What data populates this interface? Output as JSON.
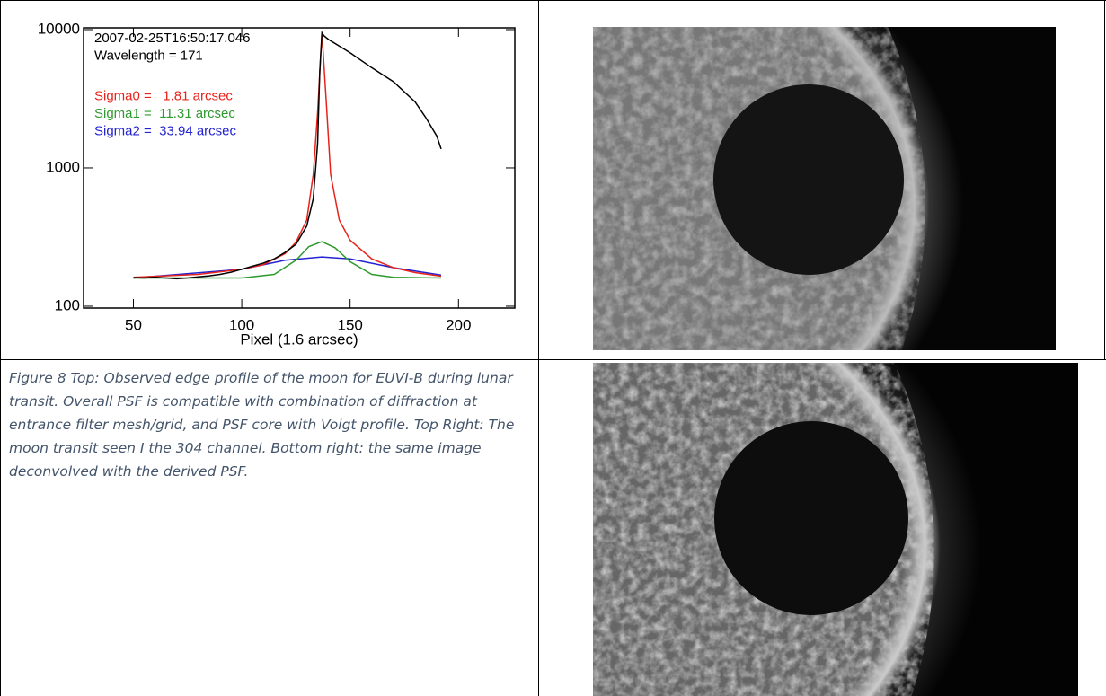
{
  "chart_data": {
    "type": "line",
    "log_y": true,
    "xlabel": "Pixel (1.6 arcsec)",
    "xlim": [
      27,
      226
    ],
    "xticks": [
      50,
      100,
      150,
      200
    ],
    "ylim": [
      97,
      10300
    ],
    "yticks": [
      100,
      1000,
      10000
    ],
    "annotations": [
      {
        "text": "2007-02-25T16:50:17.046",
        "color": "#000000"
      },
      {
        "text": "Wavelength = 171",
        "color": "#000000"
      },
      {
        "text": "Sigma0 =   1.81 arcsec",
        "color": "#e8231c"
      },
      {
        "text": "Sigma1 =  11.31 arcsec",
        "color": "#2e9a2e"
      },
      {
        "text": "Sigma2 =  33.94 arcsec",
        "color": "#2323d0"
      }
    ],
    "series": [
      {
        "color": "#000000",
        "x": [
          50,
          55,
          60,
          65,
          70,
          75,
          80,
          85,
          90,
          95,
          100,
          105,
          110,
          115,
          120,
          125,
          130,
          133,
          135,
          136,
          137,
          138,
          140,
          150,
          160,
          170,
          180,
          185,
          190,
          192
        ],
        "values": [
          161,
          160,
          162,
          160,
          158,
          160,
          163,
          166,
          170,
          176,
          185,
          195,
          205,
          220,
          245,
          280,
          380,
          600,
          1500,
          5000,
          9500,
          9000,
          8500,
          6800,
          5300,
          4200,
          3000,
          2300,
          1700,
          1370
        ]
      },
      {
        "color": "#e8231c",
        "x": [
          50,
          80,
          100,
          110,
          120,
          125,
          130,
          133,
          135,
          137,
          139,
          141,
          145,
          150,
          160,
          170,
          180,
          192
        ],
        "values": [
          162,
          170,
          185,
          200,
          240,
          290,
          420,
          900,
          2500,
          9500,
          3000,
          900,
          420,
          300,
          220,
          190,
          175,
          165
        ]
      },
      {
        "color": "#2e9a2e",
        "x": [
          50,
          100,
          115,
          125,
          131,
          137,
          143,
          150,
          160,
          170,
          192
        ],
        "values": [
          160,
          160,
          170,
          215,
          270,
          293,
          265,
          210,
          170,
          162,
          160
        ]
      },
      {
        "color": "#2323d0",
        "x": [
          50,
          100,
          120,
          137,
          150,
          170,
          192
        ],
        "values": [
          160,
          185,
          215,
          227,
          220,
          190,
          168
        ]
      }
    ]
  },
  "caption": "Figure 8 Top: Observed edge profile of the moon for EUVI-B during lunar transit. Overall PSF is compatible with combination of diffraction at entrance filter mesh/grid, and PSF core with Voigt profile. Top Right: The moon transit seen I the 304 channel. Bottom right: the same image deconvolved with the derived PSF."
}
